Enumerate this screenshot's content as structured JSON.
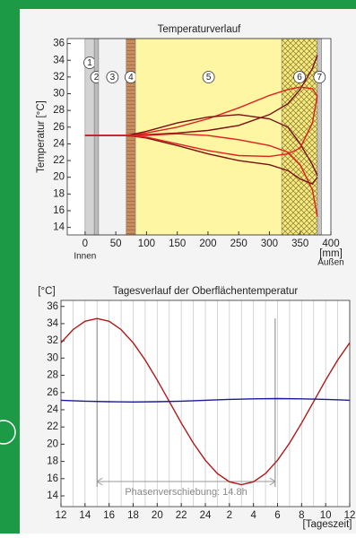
{
  "chart_data": [
    {
      "type": "line",
      "title": "Temperaturverlauf",
      "ylabel": "Temperatur [°C]",
      "xlabel": "[mm]",
      "x_left_label": "Innen",
      "x_right_label": "Außen",
      "xlim": [
        -29,
        400
      ],
      "xticks": [
        0,
        50,
        100,
        150,
        200,
        250,
        300,
        350,
        400
      ],
      "ylim": [
        13.1,
        36.6
      ],
      "yticks": [
        14,
        16,
        18,
        20,
        22,
        24,
        26,
        28,
        30,
        32,
        34,
        36
      ],
      "layers": [
        {
          "label": "1",
          "from": 0,
          "to": 15,
          "color": "#d3d3d3"
        },
        {
          "label": "2",
          "from": 15,
          "to": 22,
          "color": "#bcbcbc"
        },
        {
          "label": "3",
          "from": 22,
          "to": 67,
          "color": "#f2f2f2"
        },
        {
          "label": "4",
          "from": 67,
          "to": 82,
          "color": "#c98a5c"
        },
        {
          "label": "5",
          "from": 82,
          "to": 320,
          "color": "#fff6a3"
        },
        {
          "label": "6",
          "from": 320,
          "to": 378,
          "color": "#f6ea80"
        },
        {
          "label": "7",
          "from": 378,
          "to": 385,
          "color": "#c4c4c4"
        }
      ],
      "x": [
        0,
        70,
        100,
        150,
        200,
        250,
        300,
        330,
        350,
        370,
        378
      ],
      "series": [
        {
          "color": "#7a1010",
          "values": [
            25,
            25,
            25.1,
            25.3,
            25.6,
            26.2,
            27.5,
            28.8,
            30.5,
            33,
            34.6
          ]
        },
        {
          "color": "#e02020",
          "values": [
            25,
            25,
            25.3,
            26,
            27,
            28.3,
            29.8,
            30.5,
            30.8,
            30.6,
            29.7
          ]
        },
        {
          "color": "#7a1010",
          "values": [
            25,
            25,
            25.5,
            26.5,
            27.2,
            27.5,
            27,
            26,
            24,
            21.5,
            20.2
          ]
        },
        {
          "color": "#e02020",
          "values": [
            25,
            25,
            25,
            25.2,
            25,
            24.5,
            23.8,
            23,
            21.5,
            18.5,
            15.3
          ]
        },
        {
          "color": "#7a1010",
          "values": [
            25,
            25,
            24.7,
            23.8,
            22.8,
            22,
            21.5,
            20.8,
            19.8,
            19.2,
            20
          ]
        },
        {
          "color": "#e02020",
          "values": [
            25,
            25,
            24.8,
            24,
            23.2,
            22.6,
            22.5,
            22.8,
            23.5,
            26.5,
            29.8
          ]
        }
      ]
    },
    {
      "type": "line",
      "title": "Tagesverlauf der Oberflächentemperatur",
      "ylabel": "[°C]",
      "xlabel": "[Tageszeit]",
      "xlim": [
        12,
        36
      ],
      "xticks": [
        12,
        14,
        16,
        18,
        20,
        22,
        24,
        {
          "value": 26,
          "label": "2"
        },
        {
          "value": 28,
          "label": "4"
        },
        {
          "value": 30,
          "label": "6"
        },
        {
          "value": 32,
          "label": "8"
        },
        {
          "value": 34,
          "label": "10"
        },
        {
          "value": 36,
          "label": "12"
        }
      ],
      "minor_xticks": [
        13,
        15,
        17,
        19,
        21,
        23,
        25,
        27,
        29,
        31,
        33,
        35
      ],
      "ylim": [
        12.75,
        36.7
      ],
      "yticks": [
        14,
        16,
        18,
        20,
        22,
        24,
        26,
        28,
        30,
        32,
        34,
        36
      ],
      "phase_shift": {
        "label": "Phasenverschiebung: 14.8h",
        "from": 15,
        "to": 29.8
      },
      "series": [
        {
          "color": "#b01818",
          "x": [
            12,
            13,
            14,
            15,
            16,
            17,
            18,
            19,
            20,
            21,
            22,
            23,
            24,
            25,
            26,
            27,
            28,
            29,
            30,
            31,
            32,
            33,
            34,
            35,
            36
          ],
          "values": [
            31.77,
            33.31,
            34.27,
            34.6,
            34.27,
            33.31,
            31.77,
            29.78,
            27.45,
            24.95,
            22.45,
            20.13,
            18.13,
            16.59,
            15.63,
            15.3,
            15.63,
            16.59,
            18.13,
            20.13,
            22.45,
            24.95,
            27.45,
            29.78,
            31.77
          ]
        },
        {
          "color": "#1a1aa0",
          "x": [
            12,
            14,
            16,
            18,
            20,
            22,
            24,
            26,
            28,
            30,
            32,
            34,
            36
          ],
          "values": [
            25.1,
            25.0,
            24.93,
            24.9,
            24.93,
            25.0,
            25.1,
            25.2,
            25.27,
            25.3,
            25.27,
            25.2,
            25.1
          ]
        }
      ]
    }
  ]
}
